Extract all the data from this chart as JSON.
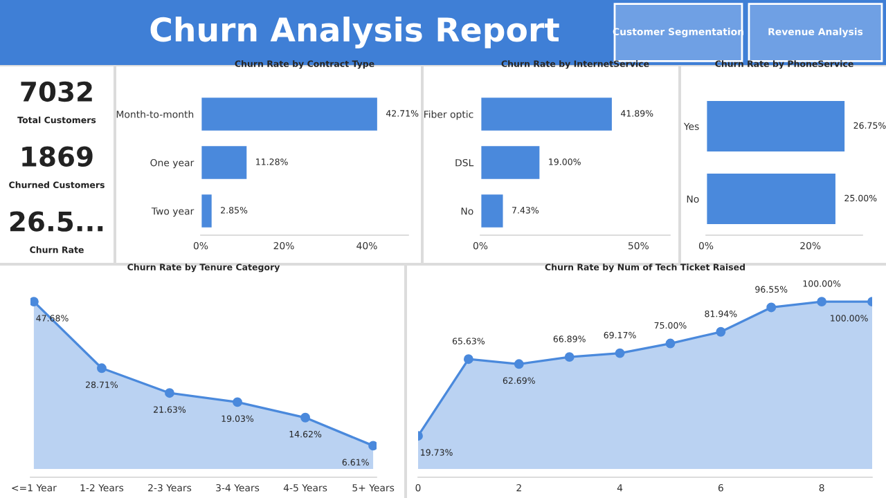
{
  "chart_data": [
    {
      "type": "other",
      "title": "Churn Analysis Report",
      "annotations": [
        "Customer Segmentation",
        "Revenue Analysis"
      ]
    },
    {
      "type": "other",
      "annotations": [
        "7032",
        "Total Customers",
        "1869",
        "Churned Customers",
        "26.5...",
        "Churn Rate"
      ]
    },
    {
      "type": "bar",
      "orientation": "horizontal",
      "title": "Churn Rate by Contract Type",
      "categories": [
        "Month-to-month",
        "One year",
        "Two year"
      ],
      "values": [
        42.71,
        11.28,
        2.85
      ],
      "value_labels": [
        "42.71%",
        "11.28%",
        "2.85%"
      ],
      "color": "#4a89dc",
      "xlim": [
        0,
        50
      ],
      "xticks": [
        {
          "value": 0,
          "label": "0%"
        },
        {
          "value": 20,
          "label": "20%"
        },
        {
          "value": 40,
          "label": "40%"
        }
      ]
    },
    {
      "type": "bar",
      "orientation": "horizontal",
      "title": "Churn Rate by InternetService",
      "categories": [
        "Fiber optic",
        "DSL",
        "No"
      ],
      "values": [
        41.89,
        19.0,
        7.43
      ],
      "value_labels": [
        "41.89%",
        "19.00%",
        "7.43%"
      ],
      "color": "#4a89dc",
      "xlim": [
        0,
        60
      ],
      "xticks": [
        {
          "value": 0,
          "label": "0%"
        },
        {
          "value": 50,
          "label": "50%"
        }
      ]
    },
    {
      "type": "bar",
      "orientation": "horizontal",
      "title": "Churn Rate by PhoneService",
      "categories": [
        "Yes",
        "No"
      ],
      "values": [
        26.75,
        25.0
      ],
      "value_labels": [
        "26.75%",
        "25.00%"
      ],
      "color": "#4a89dc",
      "xlim": [
        0,
        30
      ],
      "xticks": [
        {
          "value": 0,
          "label": "0%"
        },
        {
          "value": 20,
          "label": "20%"
        }
      ]
    },
    {
      "type": "area",
      "title": "Churn Rate by Tenure Category",
      "categories": [
        "<=1 Year",
        "1-2 Years",
        "2-3 Years",
        "3-4 Years",
        "4-5 Years",
        "5+ Years"
      ],
      "values": [
        47.68,
        28.71,
        21.63,
        19.03,
        14.62,
        6.61
      ],
      "value_labels": [
        "47.68%",
        "28.71%",
        "21.63%",
        "19.03%",
        "14.62%",
        "6.61%"
      ],
      "color": "#4a89dc",
      "tick_labels": "x",
      "marker": "circle"
    },
    {
      "type": "area",
      "title": "Churn Rate by Num of Tech Ticket Raised",
      "x": [
        0,
        1,
        2,
        3,
        4,
        5,
        6,
        7,
        8,
        9
      ],
      "values": [
        19.73,
        65.63,
        62.69,
        66.89,
        69.17,
        75.0,
        81.94,
        96.55,
        100.0,
        100.0
      ],
      "value_labels": [
        "19.73%",
        "65.63%",
        "62.69%",
        "66.89%",
        "69.17%",
        "75.00%",
        "81.94%",
        "96.55%",
        "100.00%",
        "100.00%"
      ],
      "color": "#4a89dc",
      "xlim": [
        0,
        9
      ],
      "xticks": [
        0,
        2,
        4,
        6,
        8
      ],
      "tick_labels": "x",
      "marker": "circle"
    }
  ]
}
